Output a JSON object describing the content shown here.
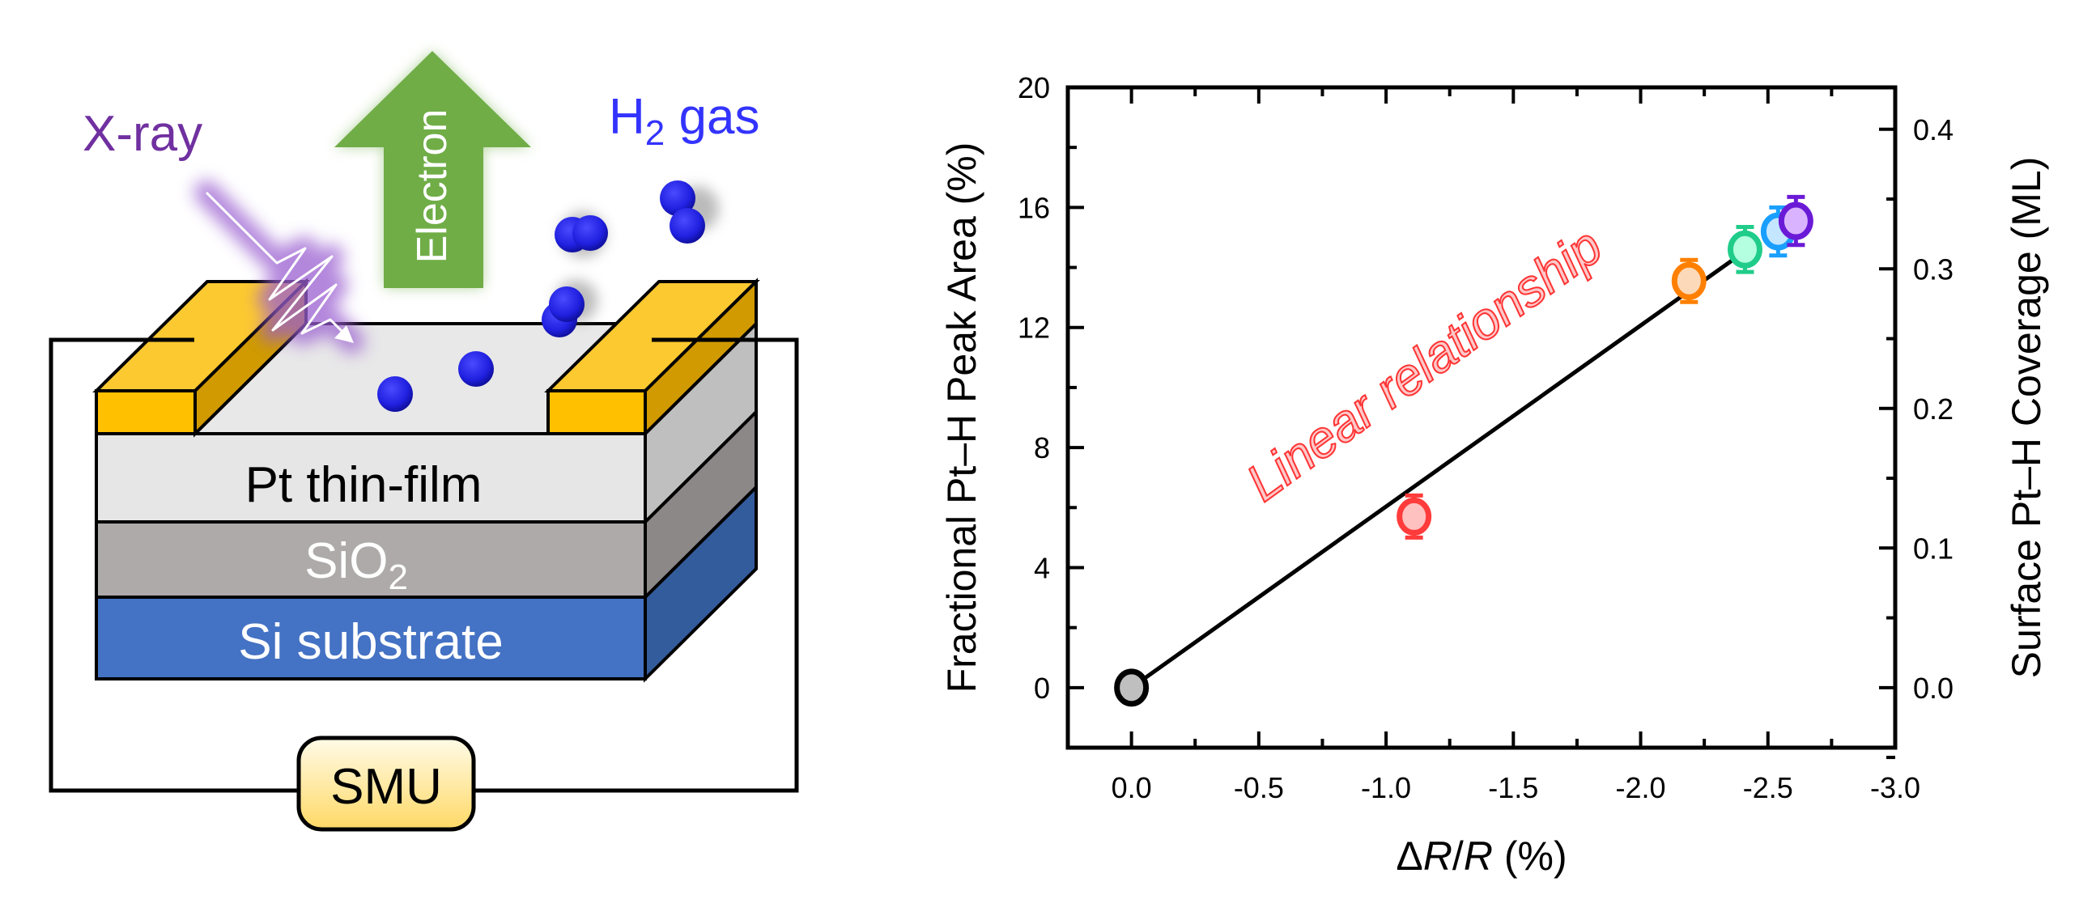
{
  "diagram": {
    "xray_label": "X-ray",
    "electron_label": "Electron",
    "h2_label_main": "H",
    "h2_label_sub": "2",
    "h2_label_rest": " gas",
    "layer_pt": "Pt thin-film",
    "layer_sio2_main": "SiO",
    "layer_sio2_sub": "2",
    "layer_si": "Si substrate",
    "smu_label": "SMU",
    "colors": {
      "xray": "#7030a0",
      "h2": "#3333ff",
      "electron_arrow": "#70ad47",
      "electrode": "#ffc000",
      "pt": "#e6e6e6",
      "sio2": "#aeaaaa",
      "si": "#4472c4",
      "sphere": "#2020e0"
    }
  },
  "chart_data": {
    "type": "scatter",
    "title": "",
    "xlabel_prefix": "Δ",
    "xlabel_r1": "R",
    "xlabel_slash": "/",
    "xlabel_r2": "R",
    "xlabel_suffix": " (%)",
    "ylabel": "Fractional Pt–H Peak Area (%)",
    "y2label": "Surface Pt–H Coverage (ML)",
    "xlim": [
      0.25,
      -3.0
    ],
    "ylim": [
      -2,
      20
    ],
    "y2_per_y": 0.0215,
    "xticks": [
      "0.0",
      "-0.5",
      "-1.0",
      "-1.5",
      "-2.0",
      "-2.5",
      "-3.0"
    ],
    "xtick_values": [
      0,
      -0.5,
      -1.0,
      -1.5,
      -2.0,
      -2.5,
      -3.0
    ],
    "yticks": [
      "0",
      "4",
      "8",
      "12",
      "16",
      "20"
    ],
    "ytick_values": [
      0,
      4,
      8,
      12,
      16,
      20
    ],
    "y2ticks": [
      "0.0",
      "0.1",
      "0.2",
      "0.3",
      "0.4"
    ],
    "y2tick_values": [
      0,
      0.1,
      0.2,
      0.3,
      0.4
    ],
    "points": [
      {
        "x": 0.0,
        "y": 0.0,
        "err": 0,
        "stroke": "#000000",
        "fill": "#bfbfbf"
      },
      {
        "x": -1.11,
        "y": 5.7,
        "err": 0.7,
        "stroke": "#ff3b3b",
        "fill": "#ffc0c0"
      },
      {
        "x": -2.19,
        "y": 13.55,
        "err": 0.7,
        "stroke": "#ff8000",
        "fill": "#fcd9b8"
      },
      {
        "x": -2.41,
        "y": 14.6,
        "err": 0.75,
        "stroke": "#20cc8a",
        "fill": "#b3ffe0"
      },
      {
        "x": -2.54,
        "y": 15.2,
        "err": 0.8,
        "stroke": "#1a9fff",
        "fill": "#c4e6ff"
      },
      {
        "x": -2.61,
        "y": 15.55,
        "err": 0.8,
        "stroke": "#6a1ad6",
        "fill": "#d9b3ff"
      }
    ],
    "fit_line": {
      "x": [
        0.0,
        -2.37
      ],
      "y": [
        0.0,
        14.3
      ]
    },
    "annotation": "Linear relationship",
    "annotation_color": "#ff3333",
    "grid": false,
    "legend": "none"
  }
}
